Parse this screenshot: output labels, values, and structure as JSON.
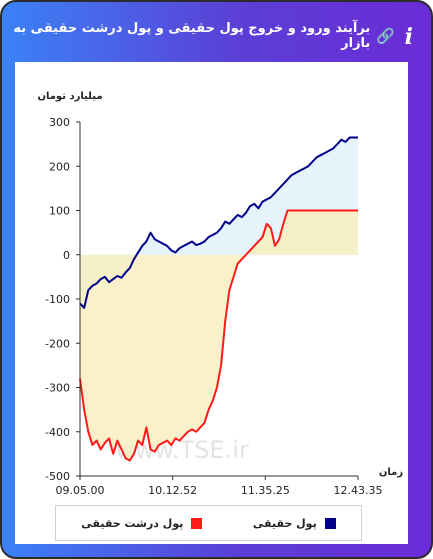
{
  "header": {
    "title": "برآیند ورود و خروج پول حقیقی و پول درشت حقیقی به بازار",
    "link_icon": "link-icon",
    "info_icon": "info-icon",
    "info_glyph": "i"
  },
  "watermark": "www.TSE.ir",
  "colors": {
    "real": "#00008b",
    "big": "#ff1a1a",
    "real_fill": "#e6f3fb",
    "big_fill": "#f8efc0",
    "overlap_fill": "#eeeac6"
  },
  "chart_data": {
    "type": "area",
    "ylabel": "میلیارد تومان",
    "xlabel": "زمان",
    "ylim": [
      -500,
      300
    ],
    "yticks": [
      300,
      200,
      100,
      0,
      -100,
      -200,
      -300,
      -400,
      -500
    ],
    "xticks": [
      "09.05.00",
      "10.12.52",
      "11.35.25",
      "12.43.35"
    ],
    "grid": false,
    "legend_position": "bottom",
    "x": [
      0,
      1.5,
      3,
      4.5,
      6,
      7.5,
      9,
      10.5,
      12,
      13.5,
      15,
      16.5,
      18,
      19.5,
      21,
      22.5,
      24,
      25.5,
      27,
      28.5,
      30,
      31.5,
      33,
      34.5,
      36,
      37.5,
      39,
      40.5,
      42,
      43.5,
      45,
      46.5,
      48,
      49.5,
      51,
      52.5,
      54,
      55.5,
      57,
      58.5,
      60,
      61.5,
      63,
      64.5,
      66,
      67.5,
      69,
      70.5,
      72,
      73.5,
      75,
      76.5,
      78,
      79.5,
      81,
      82.5,
      84,
      85.5,
      87,
      88.5,
      90,
      91.5,
      93,
      94.5,
      96,
      97.5,
      99,
      100.5
    ],
    "series": [
      {
        "name": "پول حقیقی",
        "values": [
          -110,
          -120,
          -80,
          -70,
          -65,
          -55,
          -50,
          -62,
          -55,
          -48,
          -52,
          -40,
          -30,
          -10,
          5,
          20,
          30,
          50,
          35,
          30,
          25,
          20,
          10,
          5,
          15,
          20,
          25,
          30,
          22,
          25,
          30,
          40,
          45,
          50,
          60,
          75,
          70,
          80,
          90,
          85,
          95,
          110,
          115,
          105,
          120,
          125,
          130,
          140,
          150,
          160,
          170,
          180,
          185,
          190,
          195,
          200,
          210,
          220,
          225,
          230,
          235,
          240,
          250,
          260,
          255,
          265,
          265,
          265
        ]
      },
      {
        "name": "پول درشت حقیقی",
        "values": [
          -280,
          -350,
          -400,
          -430,
          -420,
          -440,
          -425,
          -415,
          -450,
          -420,
          -440,
          -460,
          -465,
          -450,
          -420,
          -430,
          -390,
          -440,
          -445,
          -430,
          -425,
          -420,
          -430,
          -415,
          -420,
          -410,
          -400,
          -395,
          -400,
          -390,
          -380,
          -350,
          -330,
          -300,
          -250,
          -150,
          -80,
          -50,
          -20,
          -10,
          0,
          10,
          20,
          30,
          40,
          70,
          60,
          20,
          35,
          70,
          100,
          100,
          100,
          100,
          100,
          100,
          100,
          100,
          100,
          100,
          100,
          100,
          100,
          100,
          100,
          100,
          100,
          100
        ]
      }
    ]
  }
}
